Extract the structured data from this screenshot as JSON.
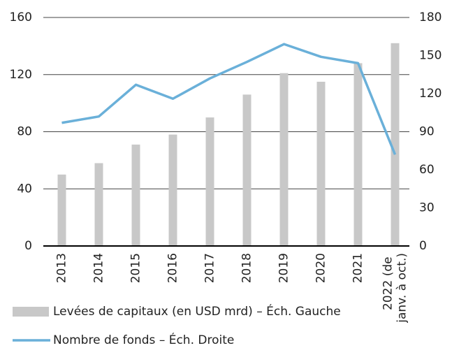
{
  "chart_data": {
    "type": "bar_line",
    "categories": [
      "2013",
      "2014",
      "2015",
      "2016",
      "2017",
      "2018",
      "2019",
      "2020",
      "2021",
      "2022 (de janv. à oct.)"
    ],
    "series": [
      {
        "name": "Levées de capitaux (en USD mrd) – Éch. Gauche",
        "type": "bar",
        "color": "#c8c8c8",
        "axis": "y",
        "values": [
          50,
          58,
          71,
          78,
          90,
          106,
          121,
          115,
          128,
          142
        ]
      },
      {
        "name": "Nombre de fonds – Éch. Droite",
        "type": "line",
        "color": "#6ab0d9",
        "axis": "y2",
        "values": [
          97,
          102,
          127,
          116,
          132,
          145,
          159,
          149,
          144,
          72
        ]
      }
    ],
    "ylim": [
      0,
      160
    ],
    "yticks": [
      0,
      40,
      80,
      120,
      160
    ],
    "y2lim": [
      0,
      180
    ],
    "y2ticks": [
      0,
      30,
      60,
      90,
      120,
      150,
      180
    ],
    "grid": true
  }
}
